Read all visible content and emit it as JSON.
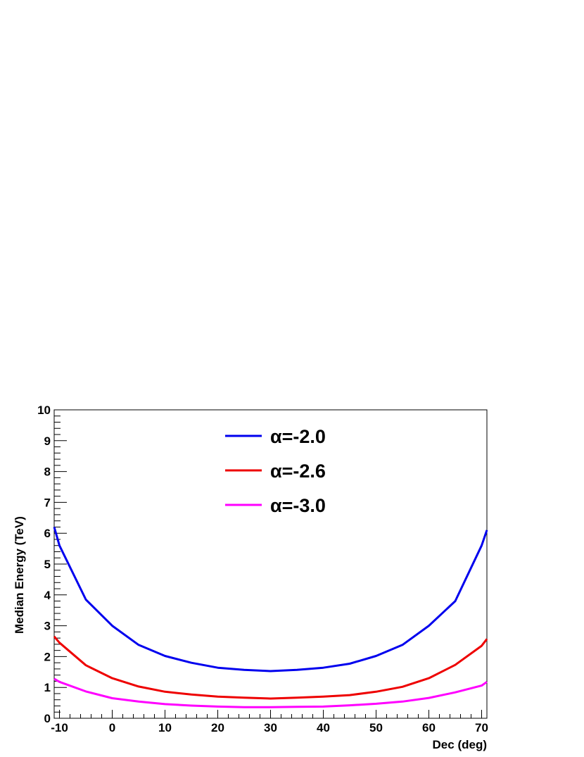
{
  "chart_data": {
    "type": "line",
    "title": "",
    "xlabel": "Dec (deg)",
    "ylabel": "Median Energy (TeV)",
    "xlim": [
      -11,
      71
    ],
    "ylim": [
      0,
      10
    ],
    "x_ticks": [
      -10,
      0,
      10,
      20,
      30,
      40,
      50,
      60,
      70
    ],
    "x_tick_labels": [
      "-10",
      "0",
      "10",
      "20",
      "30",
      "40",
      "50",
      "60",
      "70"
    ],
    "y_ticks": [
      0,
      1,
      2,
      3,
      4,
      5,
      6,
      7,
      8,
      9,
      10
    ],
    "y_tick_labels": [
      "0",
      "1",
      "2",
      "3",
      "4",
      "5",
      "6",
      "7",
      "8",
      "9",
      "10"
    ],
    "legend_position": "top-center",
    "grid": false,
    "series": [
      {
        "name": "α=-2.0",
        "color": "#0000ee",
        "x": [
          -11,
          -10,
          -5,
          0,
          5,
          10,
          15,
          20,
          25,
          30,
          35,
          40,
          45,
          50,
          55,
          60,
          65,
          70,
          71
        ],
        "y": [
          6.2,
          5.6,
          3.85,
          3.0,
          2.38,
          2.02,
          1.8,
          1.64,
          1.57,
          1.53,
          1.57,
          1.64,
          1.77,
          2.02,
          2.38,
          3.0,
          3.8,
          5.6,
          6.1
        ]
      },
      {
        "name": "α=-2.6",
        "color": "#ee0000",
        "x": [
          -11,
          -10,
          -5,
          0,
          5,
          10,
          15,
          20,
          25,
          30,
          35,
          40,
          45,
          50,
          55,
          60,
          65,
          70,
          71
        ],
        "y": [
          2.65,
          2.45,
          1.72,
          1.3,
          1.03,
          0.86,
          0.77,
          0.7,
          0.67,
          0.64,
          0.67,
          0.7,
          0.75,
          0.86,
          1.02,
          1.3,
          1.73,
          2.35,
          2.57
        ]
      },
      {
        "name": "α=-3.0",
        "color": "#ff00ff",
        "x": [
          -11,
          -10,
          -5,
          0,
          5,
          10,
          15,
          20,
          25,
          30,
          35,
          40,
          45,
          50,
          55,
          60,
          65,
          70,
          71
        ],
        "y": [
          1.28,
          1.18,
          0.87,
          0.65,
          0.54,
          0.46,
          0.41,
          0.38,
          0.36,
          0.36,
          0.37,
          0.38,
          0.42,
          0.47,
          0.54,
          0.66,
          0.84,
          1.06,
          1.18
        ]
      }
    ]
  }
}
